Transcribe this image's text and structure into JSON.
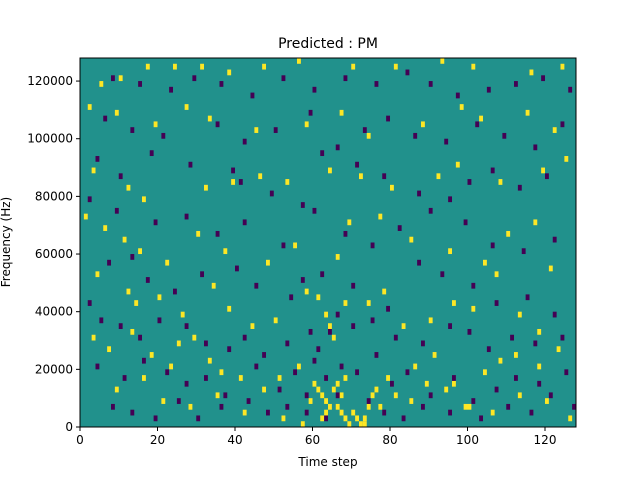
{
  "chart_data": {
    "type": "heatmap",
    "title": "Predicted : PM",
    "xlabel": "Time step",
    "ylabel": "Frequency (Hz)",
    "xlim": [
      0,
      128
    ],
    "ylim": [
      0,
      128000
    ],
    "x_ticks": [
      0,
      20,
      40,
      60,
      80,
      100,
      120
    ],
    "y_ticks": [
      0,
      20000,
      40000,
      60000,
      80000,
      100000,
      120000
    ],
    "y_tick_labels": [
      "0",
      "20000",
      "40000",
      "60000",
      "80000",
      "100000",
      "120000"
    ],
    "grid": false,
    "legend": "none",
    "colormap": "viridis",
    "colors": {
      "background": "#21918c",
      "high": "#fde725",
      "low": "#440154"
    },
    "cell_size": {
      "time_steps": 1,
      "hz": 2000
    },
    "high_cells": [
      [
        5,
        118
      ],
      [
        10,
        120
      ],
      [
        17,
        124
      ],
      [
        24,
        124
      ],
      [
        31,
        124
      ],
      [
        38,
        122
      ],
      [
        47,
        124
      ],
      [
        56,
        126
      ],
      [
        70,
        124
      ],
      [
        81,
        124
      ],
      [
        93,
        126
      ],
      [
        101,
        124
      ],
      [
        116,
        122
      ],
      [
        124,
        124
      ],
      [
        2,
        110
      ],
      [
        9,
        108
      ],
      [
        19,
        104
      ],
      [
        27,
        110
      ],
      [
        33,
        106
      ],
      [
        45,
        102
      ],
      [
        58,
        104
      ],
      [
        67,
        108
      ],
      [
        74,
        100
      ],
      [
        88,
        104
      ],
      [
        98,
        110
      ],
      [
        103,
        106
      ],
      [
        115,
        108
      ],
      [
        122,
        102
      ],
      [
        3,
        88
      ],
      [
        12,
        82
      ],
      [
        16,
        78
      ],
      [
        32,
        82
      ],
      [
        39,
        84
      ],
      [
        46,
        86
      ],
      [
        53,
        84
      ],
      [
        64,
        88
      ],
      [
        72,
        86
      ],
      [
        80,
        82
      ],
      [
        92,
        86
      ],
      [
        97,
        90
      ],
      [
        108,
        84
      ],
      [
        119,
        88
      ],
      [
        125,
        92
      ],
      [
        1,
        72
      ],
      [
        6,
        68
      ],
      [
        11,
        64
      ],
      [
        15,
        60
      ],
      [
        22,
        56
      ],
      [
        30,
        66
      ],
      [
        37,
        60
      ],
      [
        48,
        56
      ],
      [
        55,
        62
      ],
      [
        66,
        58
      ],
      [
        69,
        70
      ],
      [
        77,
        72
      ],
      [
        85,
        64
      ],
      [
        95,
        60
      ],
      [
        104,
        56
      ],
      [
        110,
        66
      ],
      [
        117,
        70
      ],
      [
        121,
        54
      ],
      [
        4,
        52
      ],
      [
        12,
        46
      ],
      [
        14,
        42
      ],
      [
        20,
        44
      ],
      [
        26,
        38
      ],
      [
        34,
        48
      ],
      [
        38,
        40
      ],
      [
        44,
        34
      ],
      [
        50,
        36
      ],
      [
        58,
        46
      ],
      [
        61,
        44
      ],
      [
        63,
        38
      ],
      [
        64,
        34
      ],
      [
        65,
        30
      ],
      [
        68,
        42
      ],
      [
        74,
        42
      ],
      [
        78,
        46
      ],
      [
        83,
        34
      ],
      [
        90,
        36
      ],
      [
        96,
        42
      ],
      [
        101,
        40
      ],
      [
        107,
        52
      ],
      [
        113,
        38
      ],
      [
        118,
        32
      ],
      [
        3,
        30
      ],
      [
        7,
        26
      ],
      [
        13,
        32
      ],
      [
        18,
        24
      ],
      [
        23,
        20
      ],
      [
        25,
        28
      ],
      [
        29,
        30
      ],
      [
        33,
        22
      ],
      [
        36,
        18
      ],
      [
        41,
        16
      ],
      [
        47,
        12
      ],
      [
        51,
        16
      ],
      [
        56,
        20
      ],
      [
        60,
        14
      ],
      [
        61,
        12
      ],
      [
        62,
        10
      ],
      [
        63,
        8
      ],
      [
        64,
        6
      ],
      [
        65,
        12
      ],
      [
        66,
        14
      ],
      [
        67,
        10
      ],
      [
        68,
        16
      ],
      [
        70,
        4
      ],
      [
        71,
        2
      ],
      [
        72,
        0
      ],
      [
        73,
        2
      ],
      [
        74,
        6
      ],
      [
        75,
        10
      ],
      [
        76,
        12
      ],
      [
        79,
        16
      ],
      [
        86,
        20
      ],
      [
        91,
        24
      ],
      [
        96,
        14
      ],
      [
        100,
        6
      ],
      [
        104,
        18
      ],
      [
        108,
        22
      ],
      [
        112,
        24
      ],
      [
        118,
        20
      ],
      [
        123,
        26
      ],
      [
        9,
        12
      ],
      [
        16,
        16
      ],
      [
        21,
        8
      ],
      [
        28,
        6
      ],
      [
        35,
        10
      ],
      [
        42,
        4
      ],
      [
        52,
        2
      ],
      [
        57,
        0
      ],
      [
        59,
        8
      ],
      [
        62,
        2
      ],
      [
        63,
        4
      ],
      [
        66,
        6
      ],
      [
        67,
        4
      ],
      [
        68,
        2
      ],
      [
        69,
        0
      ],
      [
        73,
        0
      ],
      [
        77,
        6
      ],
      [
        81,
        10
      ],
      [
        85,
        8
      ],
      [
        89,
        14
      ],
      [
        94,
        12
      ],
      [
        99,
        6
      ],
      [
        106,
        4
      ],
      [
        113,
        10
      ],
      [
        120,
        8
      ],
      [
        126,
        2
      ]
    ],
    "low_cells": [
      [
        8,
        120
      ],
      [
        15,
        118
      ],
      [
        23,
        116
      ],
      [
        29,
        120
      ],
      [
        36,
        118
      ],
      [
        44,
        114
      ],
      [
        52,
        120
      ],
      [
        60,
        116
      ],
      [
        68,
        120
      ],
      [
        76,
        118
      ],
      [
        84,
        122
      ],
      [
        90,
        118
      ],
      [
        97,
        114
      ],
      [
        105,
        116
      ],
      [
        112,
        118
      ],
      [
        119,
        120
      ],
      [
        126,
        116
      ],
      [
        6,
        106
      ],
      [
        13,
        102
      ],
      [
        21,
        100
      ],
      [
        35,
        104
      ],
      [
        42,
        98
      ],
      [
        50,
        102
      ],
      [
        59,
        108
      ],
      [
        66,
        96
      ],
      [
        73,
        102
      ],
      [
        79,
        106
      ],
      [
        86,
        100
      ],
      [
        94,
        98
      ],
      [
        102,
        104
      ],
      [
        109,
        100
      ],
      [
        117,
        96
      ],
      [
        124,
        104
      ],
      [
        4,
        92
      ],
      [
        10,
        86
      ],
      [
        18,
        94
      ],
      [
        28,
        90
      ],
      [
        39,
        88
      ],
      [
        41,
        84
      ],
      [
        49,
        80
      ],
      [
        57,
        76
      ],
      [
        62,
        94
      ],
      [
        71,
        90
      ],
      [
        78,
        86
      ],
      [
        87,
        80
      ],
      [
        95,
        78
      ],
      [
        100,
        84
      ],
      [
        106,
        88
      ],
      [
        113,
        82
      ],
      [
        120,
        86
      ],
      [
        2,
        78
      ],
      [
        9,
        74
      ],
      [
        19,
        70
      ],
      [
        27,
        72
      ],
      [
        35,
        66
      ],
      [
        42,
        70
      ],
      [
        52,
        62
      ],
      [
        60,
        74
      ],
      [
        68,
        66
      ],
      [
        75,
        62
      ],
      [
        82,
        68
      ],
      [
        90,
        74
      ],
      [
        99,
        70
      ],
      [
        106,
        62
      ],
      [
        114,
        60
      ],
      [
        122,
        64
      ],
      [
        7,
        56
      ],
      [
        13,
        58
      ],
      [
        17,
        50
      ],
      [
        24,
        46
      ],
      [
        31,
        52
      ],
      [
        40,
        54
      ],
      [
        45,
        48
      ],
      [
        54,
        44
      ],
      [
        57,
        50
      ],
      [
        62,
        52
      ],
      [
        70,
        48
      ],
      [
        79,
        40
      ],
      [
        87,
        56
      ],
      [
        93,
        52
      ],
      [
        101,
        48
      ],
      [
        107,
        42
      ],
      [
        115,
        44
      ],
      [
        122,
        38
      ],
      [
        2,
        42
      ],
      [
        5,
        36
      ],
      [
        10,
        34
      ],
      [
        15,
        30
      ],
      [
        20,
        36
      ],
      [
        27,
        34
      ],
      [
        32,
        28
      ],
      [
        38,
        26
      ],
      [
        42,
        30
      ],
      [
        47,
        24
      ],
      [
        53,
        28
      ],
      [
        59,
        32
      ],
      [
        61,
        26
      ],
      [
        64,
        32
      ],
      [
        66,
        38
      ],
      [
        70,
        34
      ],
      [
        75,
        36
      ],
      [
        81,
        30
      ],
      [
        88,
        28
      ],
      [
        95,
        34
      ],
      [
        100,
        32
      ],
      [
        105,
        26
      ],
      [
        111,
        30
      ],
      [
        117,
        28
      ],
      [
        124,
        30
      ],
      [
        4,
        20
      ],
      [
        11,
        16
      ],
      [
        16,
        22
      ],
      [
        22,
        18
      ],
      [
        27,
        14
      ],
      [
        32,
        16
      ],
      [
        37,
        10
      ],
      [
        45,
        20
      ],
      [
        51,
        12
      ],
      [
        55,
        18
      ],
      [
        58,
        4
      ],
      [
        60,
        22
      ],
      [
        63,
        16
      ],
      [
        67,
        20
      ],
      [
        71,
        18
      ],
      [
        76,
        24
      ],
      [
        80,
        14
      ],
      [
        84,
        18
      ],
      [
        90,
        10
      ],
      [
        96,
        16
      ],
      [
        101,
        8
      ],
      [
        107,
        12
      ],
      [
        112,
        16
      ],
      [
        118,
        14
      ],
      [
        125,
        18
      ],
      [
        8,
        6
      ],
      [
        13,
        4
      ],
      [
        19,
        2
      ],
      [
        25,
        8
      ],
      [
        30,
        2
      ],
      [
        36,
        6
      ],
      [
        43,
        8
      ],
      [
        48,
        4
      ],
      [
        53,
        6
      ],
      [
        58,
        10
      ],
      [
        63,
        2
      ],
      [
        66,
        10
      ],
      [
        74,
        8
      ],
      [
        78,
        4
      ],
      [
        83,
        2
      ],
      [
        88,
        6
      ],
      [
        95,
        4
      ],
      [
        103,
        2
      ],
      [
        110,
        6
      ],
      [
        116,
        4
      ],
      [
        121,
        10
      ],
      [
        127,
        6
      ]
    ]
  }
}
